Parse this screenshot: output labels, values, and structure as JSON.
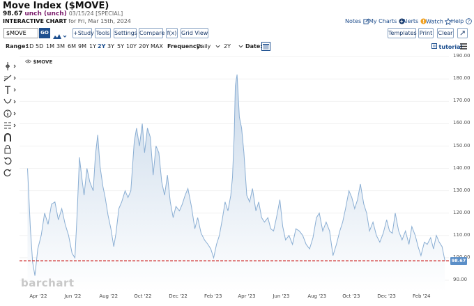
{
  "header": {
    "title": "Move Index ($MOVE)",
    "price": "98.67",
    "change": "unch (unch)",
    "date_special": "03/15/24 [SPECIAL]",
    "chart_label": "INTERACTIVE CHART",
    "chart_date": "for Fri, Mar 15th, 2024"
  },
  "top_links": {
    "notes": "Notes",
    "my_charts": "My Charts",
    "alerts": "Alerts",
    "watch": "Watch",
    "help": "Help"
  },
  "toolbar": {
    "symbol_value": "$MOVE",
    "go_label": "GO",
    "study_label": "+Study",
    "tools_label": "Tools",
    "settings_label": "Settings",
    "compare_label": "Compare",
    "fx_label": "f(x)",
    "gridview_label": "Grid View",
    "templates_label": "Templates",
    "print_label": "Print",
    "clear_label": "Clear"
  },
  "range_bar": {
    "range_label": "Range:",
    "ranges": [
      "1D",
      "5D",
      "1M",
      "3M",
      "6M",
      "9M",
      "1Y",
      "2Y",
      "3Y",
      "5Y",
      "10Y",
      "20Y",
      "MAX"
    ],
    "active_range": "2Y",
    "frequency_label": "Frequency:",
    "frequency_value": "Daily",
    "period_value": "2Y",
    "date_label": "Date:",
    "tutorial_label": "tutorial"
  },
  "chart": {
    "series_label": "$MOVE",
    "last_price_tag": "98.67",
    "watermark": "barchart"
  },
  "chart_data": {
    "type": "area",
    "series": [
      {
        "name": "$MOVE"
      }
    ],
    "x_tick_labels": [
      "Apr '22",
      "Jun '22",
      "Aug '22",
      "Oct '22",
      "Dec '22",
      "Feb '23",
      "Apr '23",
      "Jun '23",
      "Aug '23",
      "Oct '23",
      "Dec '23",
      "Feb '24"
    ],
    "y_tick_labels": [
      "90.00",
      "100.00",
      "110.00",
      "120.00",
      "130.00",
      "140.00",
      "150.00",
      "160.00",
      "170.00",
      "180.00",
      "190.00"
    ],
    "ylim": [
      85,
      191
    ],
    "reference_line": 98.67,
    "points": [
      [
        "2022-03-15",
        140
      ],
      [
        "2022-03-20",
        113
      ],
      [
        "2022-03-24",
        98
      ],
      [
        "2022-03-28",
        92
      ],
      [
        "2022-04-02",
        104
      ],
      [
        "2022-04-08",
        110
      ],
      [
        "2022-04-14",
        120
      ],
      [
        "2022-04-20",
        115
      ],
      [
        "2022-04-26",
        124
      ],
      [
        "2022-05-02",
        125
      ],
      [
        "2022-05-08",
        117
      ],
      [
        "2022-05-14",
        122
      ],
      [
        "2022-05-20",
        115
      ],
      [
        "2022-05-26",
        110
      ],
      [
        "2022-06-01",
        102
      ],
      [
        "2022-06-06",
        100
      ],
      [
        "2022-06-10",
        120
      ],
      [
        "2022-06-14",
        145
      ],
      [
        "2022-06-18",
        136
      ],
      [
        "2022-06-22",
        128
      ],
      [
        "2022-06-27",
        140
      ],
      [
        "2022-07-02",
        134
      ],
      [
        "2022-07-08",
        130
      ],
      [
        "2022-07-12",
        146
      ],
      [
        "2022-07-16",
        155
      ],
      [
        "2022-07-20",
        141
      ],
      [
        "2022-07-25",
        132
      ],
      [
        "2022-07-29",
        127
      ],
      [
        "2022-08-03",
        119
      ],
      [
        "2022-08-08",
        113
      ],
      [
        "2022-08-13",
        105
      ],
      [
        "2022-08-17",
        111
      ],
      [
        "2022-08-22",
        122
      ],
      [
        "2022-08-27",
        125
      ],
      [
        "2022-09-02",
        130
      ],
      [
        "2022-09-07",
        127
      ],
      [
        "2022-09-12",
        130
      ],
      [
        "2022-09-18",
        152
      ],
      [
        "2022-09-22",
        158
      ],
      [
        "2022-09-27",
        150
      ],
      [
        "2022-10-02",
        160
      ],
      [
        "2022-10-06",
        147
      ],
      [
        "2022-10-11",
        158
      ],
      [
        "2022-10-16",
        154
      ],
      [
        "2022-10-21",
        137
      ],
      [
        "2022-10-26",
        150
      ],
      [
        "2022-10-31",
        147
      ],
      [
        "2022-11-05",
        134
      ],
      [
        "2022-11-10",
        128
      ],
      [
        "2022-11-15",
        137
      ],
      [
        "2022-11-20",
        125
      ],
      [
        "2022-11-25",
        118
      ],
      [
        "2022-11-30",
        123
      ],
      [
        "2022-12-06",
        121
      ],
      [
        "2022-12-11",
        124
      ],
      [
        "2022-12-16",
        128
      ],
      [
        "2022-12-21",
        131
      ],
      [
        "2022-12-27",
        123
      ],
      [
        "2023-01-02",
        113
      ],
      [
        "2023-01-07",
        118
      ],
      [
        "2023-01-13",
        111
      ],
      [
        "2023-01-19",
        108
      ],
      [
        "2023-01-25",
        106
      ],
      [
        "2023-01-30",
        104
      ],
      [
        "2023-02-04",
        100
      ],
      [
        "2023-02-09",
        106
      ],
      [
        "2023-02-14",
        110
      ],
      [
        "2023-02-19",
        117
      ],
      [
        "2023-02-24",
        125
      ],
      [
        "2023-03-01",
        121
      ],
      [
        "2023-03-06",
        128
      ],
      [
        "2023-03-09",
        136
      ],
      [
        "2023-03-12",
        155
      ],
      [
        "2023-03-14",
        177
      ],
      [
        "2023-03-17",
        182
      ],
      [
        "2023-03-21",
        163
      ],
      [
        "2023-03-25",
        158
      ],
      [
        "2023-03-29",
        147
      ],
      [
        "2023-04-03",
        128
      ],
      [
        "2023-04-08",
        125
      ],
      [
        "2023-04-13",
        131
      ],
      [
        "2023-04-19",
        121
      ],
      [
        "2023-04-24",
        125
      ],
      [
        "2023-04-29",
        118
      ],
      [
        "2023-05-04",
        116
      ],
      [
        "2023-05-10",
        118
      ],
      [
        "2023-05-15",
        113
      ],
      [
        "2023-05-20",
        112
      ],
      [
        "2023-05-25",
        118
      ],
      [
        "2023-05-31",
        126
      ],
      [
        "2023-06-05",
        114
      ],
      [
        "2023-06-10",
        108
      ],
      [
        "2023-06-16",
        110
      ],
      [
        "2023-06-22",
        106
      ],
      [
        "2023-06-28",
        113
      ],
      [
        "2023-07-04",
        112
      ],
      [
        "2023-07-10",
        110
      ],
      [
        "2023-07-16",
        106
      ],
      [
        "2023-07-22",
        104
      ],
      [
        "2023-07-28",
        109
      ],
      [
        "2023-08-03",
        118
      ],
      [
        "2023-08-08",
        120
      ],
      [
        "2023-08-14",
        112
      ],
      [
        "2023-08-20",
        116
      ],
      [
        "2023-08-26",
        112
      ],
      [
        "2023-09-01",
        101
      ],
      [
        "2023-09-07",
        106
      ],
      [
        "2023-09-13",
        112
      ],
      [
        "2023-09-18",
        116
      ],
      [
        "2023-09-23",
        122
      ],
      [
        "2023-09-29",
        130
      ],
      [
        "2023-10-04",
        127
      ],
      [
        "2023-10-09",
        122
      ],
      [
        "2023-10-14",
        126
      ],
      [
        "2023-10-19",
        133
      ],
      [
        "2023-10-25",
        124
      ],
      [
        "2023-10-30",
        120
      ],
      [
        "2023-11-04",
        112
      ],
      [
        "2023-11-10",
        116
      ],
      [
        "2023-11-16",
        110
      ],
      [
        "2023-11-22",
        107
      ],
      [
        "2023-11-28",
        111
      ],
      [
        "2023-12-04",
        117
      ],
      [
        "2023-12-09",
        112
      ],
      [
        "2023-12-14",
        111
      ],
      [
        "2023-12-19",
        120
      ],
      [
        "2023-12-25",
        112
      ],
      [
        "2023-12-31",
        108
      ],
      [
        "2024-01-06",
        112
      ],
      [
        "2024-01-12",
        106
      ],
      [
        "2024-01-17",
        114
      ],
      [
        "2024-01-23",
        110
      ],
      [
        "2024-01-28",
        105
      ],
      [
        "2024-02-02",
        101
      ],
      [
        "2024-02-08",
        107
      ],
      [
        "2024-02-13",
        106
      ],
      [
        "2024-02-19",
        109
      ],
      [
        "2024-02-24",
        104
      ],
      [
        "2024-02-29",
        110
      ],
      [
        "2024-03-05",
        107
      ],
      [
        "2024-03-10",
        105
      ],
      [
        "2024-03-15",
        98.67
      ]
    ]
  },
  "colors": {
    "line": "#8aaed3",
    "fill_top": "#c9d9ea",
    "fill_bottom": "#ffffff",
    "reference_line": "#cc2222",
    "accent": "#1d4f8f"
  }
}
